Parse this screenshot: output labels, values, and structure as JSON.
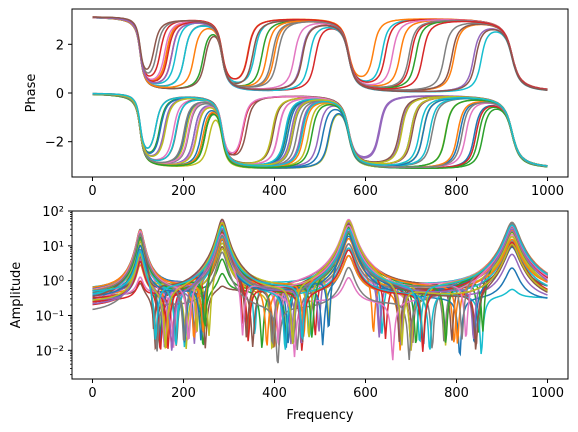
{
  "chart_data": [
    {
      "type": "line",
      "ylabel": "Phase",
      "xlabel": "",
      "xlim": [
        -45,
        1045
      ],
      "ylim": [
        -3.45,
        3.45
      ],
      "xticks": [
        "0",
        "200",
        "400",
        "600",
        "800",
        "1000"
      ],
      "yticks": [
        "2",
        "0",
        "−2"
      ],
      "grid": false,
      "legend": "none",
      "resonances": [
        105,
        285,
        563,
        922
      ],
      "phase_range": [
        -3.1416,
        3.1416
      ],
      "series_count": 40
    },
    {
      "type": "line",
      "ylabel": "Amplitude",
      "xlabel": "Frequency",
      "xlim": [
        -45,
        1045
      ],
      "ylim": [
        0.0015,
        100
      ],
      "yscale": "log",
      "xticks": [
        "0",
        "200",
        "400",
        "600",
        "800",
        "1000"
      ],
      "yticks": [
        "10²",
        "10¹",
        "10⁰",
        "10⁻¹",
        "10⁻²"
      ],
      "grid": false,
      "legend": "none",
      "peaks": [
        {
          "x": 105,
          "y": 30
        },
        {
          "x": 285,
          "y": 60
        },
        {
          "x": 563,
          "y": 62
        },
        {
          "x": 922,
          "y": 60
        }
      ],
      "series_count": 40
    }
  ],
  "colors": [
    "#1f77b4",
    "#ff7f0e",
    "#2ca02c",
    "#d62728",
    "#9467bd",
    "#8c564b",
    "#e377c2",
    "#7f7f7f",
    "#bcbd22",
    "#17becf"
  ]
}
